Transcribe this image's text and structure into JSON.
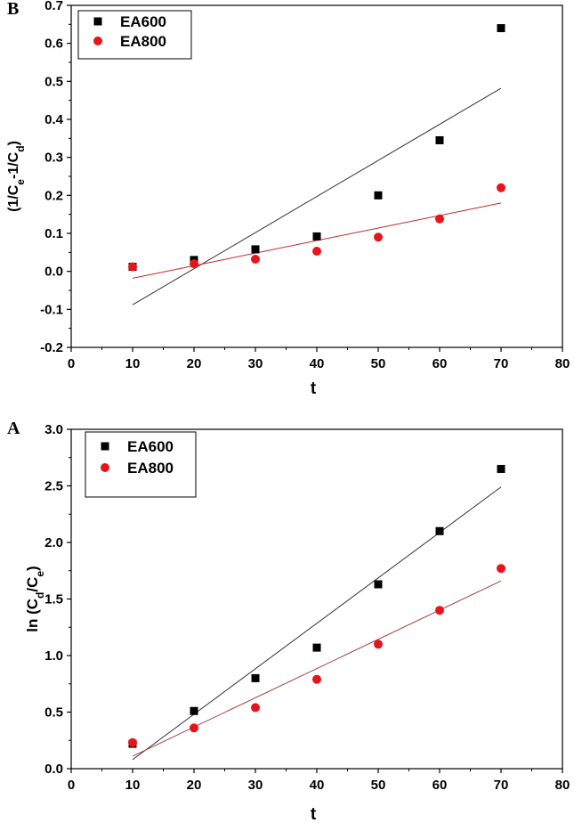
{
  "chart_data": [
    {
      "panel": "B",
      "type": "scatter",
      "xlabel": "t",
      "ylabel": {
        "parts": [
          {
            "t": "(1/C"
          },
          {
            "t": "e",
            "sub": true
          },
          {
            "t": "-1/C"
          },
          {
            "t": "d",
            "sub": true
          },
          {
            "t": ")"
          }
        ]
      },
      "xlim": [
        0,
        80
      ],
      "ylim": [
        -0.2,
        0.7
      ],
      "xticks": [
        "0",
        "10",
        "20",
        "30",
        "40",
        "50",
        "60",
        "70",
        "80"
      ],
      "yticks": [
        "-0.2",
        "-0.1",
        "0.0",
        "0.1",
        "0.2",
        "0.3",
        "0.4",
        "0.5",
        "0.6",
        "0.7"
      ],
      "legend_position": "top-left",
      "series": [
        {
          "name": "EA600",
          "marker": "square",
          "color": "#000000",
          "fit_color": "#333333",
          "x": [
            10,
            20,
            30,
            40,
            50,
            60,
            70
          ],
          "y": [
            0.012,
            0.03,
            0.058,
            0.092,
            0.2,
            0.345,
            0.64
          ],
          "fit": {
            "x": [
              10,
              70
            ],
            "y": [
              -0.088,
              0.482
            ]
          }
        },
        {
          "name": "EA800",
          "marker": "circle",
          "color": "#e8141c",
          "fit_color": "#c62828",
          "x": [
            10,
            20,
            30,
            40,
            50,
            60,
            70
          ],
          "y": [
            0.012,
            0.02,
            0.032,
            0.053,
            0.09,
            0.138,
            0.22
          ],
          "fit": {
            "x": [
              10,
              70
            ],
            "y": [
              -0.018,
              0.18
            ]
          }
        }
      ]
    },
    {
      "panel": "A",
      "type": "scatter",
      "xlabel": "t",
      "ylabel": {
        "parts": [
          {
            "t": "ln (C"
          },
          {
            "t": "d",
            "sub": true
          },
          {
            "t": "/C"
          },
          {
            "t": "e",
            "sub": true
          },
          {
            "t": ")"
          }
        ]
      },
      "xlim": [
        0,
        80
      ],
      "ylim": [
        0,
        3
      ],
      "xticks": [
        "0",
        "10",
        "20",
        "30",
        "40",
        "50",
        "60",
        "70",
        "80"
      ],
      "yticks": [
        "0.0",
        "0.5",
        "1.0",
        "1.5",
        "2.0",
        "2.5",
        "3.0"
      ],
      "legend_position": "top-left",
      "series": [
        {
          "name": "EA600",
          "marker": "square",
          "color": "#000000",
          "fit_color": "#333333",
          "x": [
            10,
            20,
            30,
            40,
            50,
            60,
            70
          ],
          "y": [
            0.22,
            0.51,
            0.8,
            1.07,
            1.63,
            2.1,
            2.65
          ],
          "fit": {
            "x": [
              10,
              70
            ],
            "y": [
              0.08,
              2.49
            ]
          }
        },
        {
          "name": "EA800",
          "marker": "circle",
          "color": "#e8141c",
          "fit_color": "#a04040",
          "x": [
            10,
            20,
            30,
            40,
            50,
            60,
            70
          ],
          "y": [
            0.23,
            0.36,
            0.54,
            0.79,
            1.1,
            1.4,
            1.77
          ],
          "fit": {
            "x": [
              10,
              70
            ],
            "y": [
              0.11,
              1.66
            ]
          }
        }
      ]
    }
  ]
}
